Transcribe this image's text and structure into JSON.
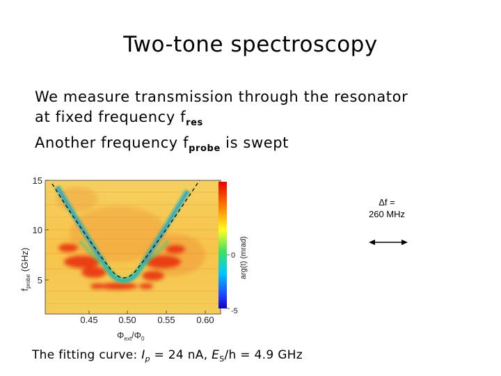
{
  "slide": {
    "title": "Two-tone spectroscopy",
    "bullet1": "We measure transmission through the resonator",
    "bullet2_prefix": "at fixed frequency f",
    "bullet2_sub": "res",
    "bullet3_prefix": "Another frequency f",
    "bullet3_sub": "probe",
    "bullet3_suffix": " is swept",
    "delta_f_line1": "Δf =",
    "delta_f_line2": "260 MHz",
    "fit_prefix": "The fitting curve: ",
    "fit_Ip_symbol": "I",
    "fit_Ip_sub": "p",
    "fit_Ip_value": " = 24 nA, ",
    "fit_Es_symbol": "E",
    "fit_Es_sub": "S",
    "fit_Es_value": "/h = 4.9 GHz"
  },
  "chart_data": {
    "type": "heatmap",
    "xlabel": "Φext/Φ0",
    "ylabel": "fprobe (GHz)",
    "x_ticks": [
      "0.45",
      "0.50",
      "0.55",
      "0.60"
    ],
    "y_ticks": [
      "15",
      "10",
      "5"
    ],
    "colorbar_label": "arg(t) (mrad)",
    "colorbar_ticks": [
      "0",
      "-5"
    ],
    "fit": {
      "center_flux": 0.5,
      "gap_GHz": 4.9,
      "current_nA": 24
    },
    "colors": {
      "background": "#f0c040",
      "line": "#20c0a0",
      "red": "#e83010"
    }
  }
}
